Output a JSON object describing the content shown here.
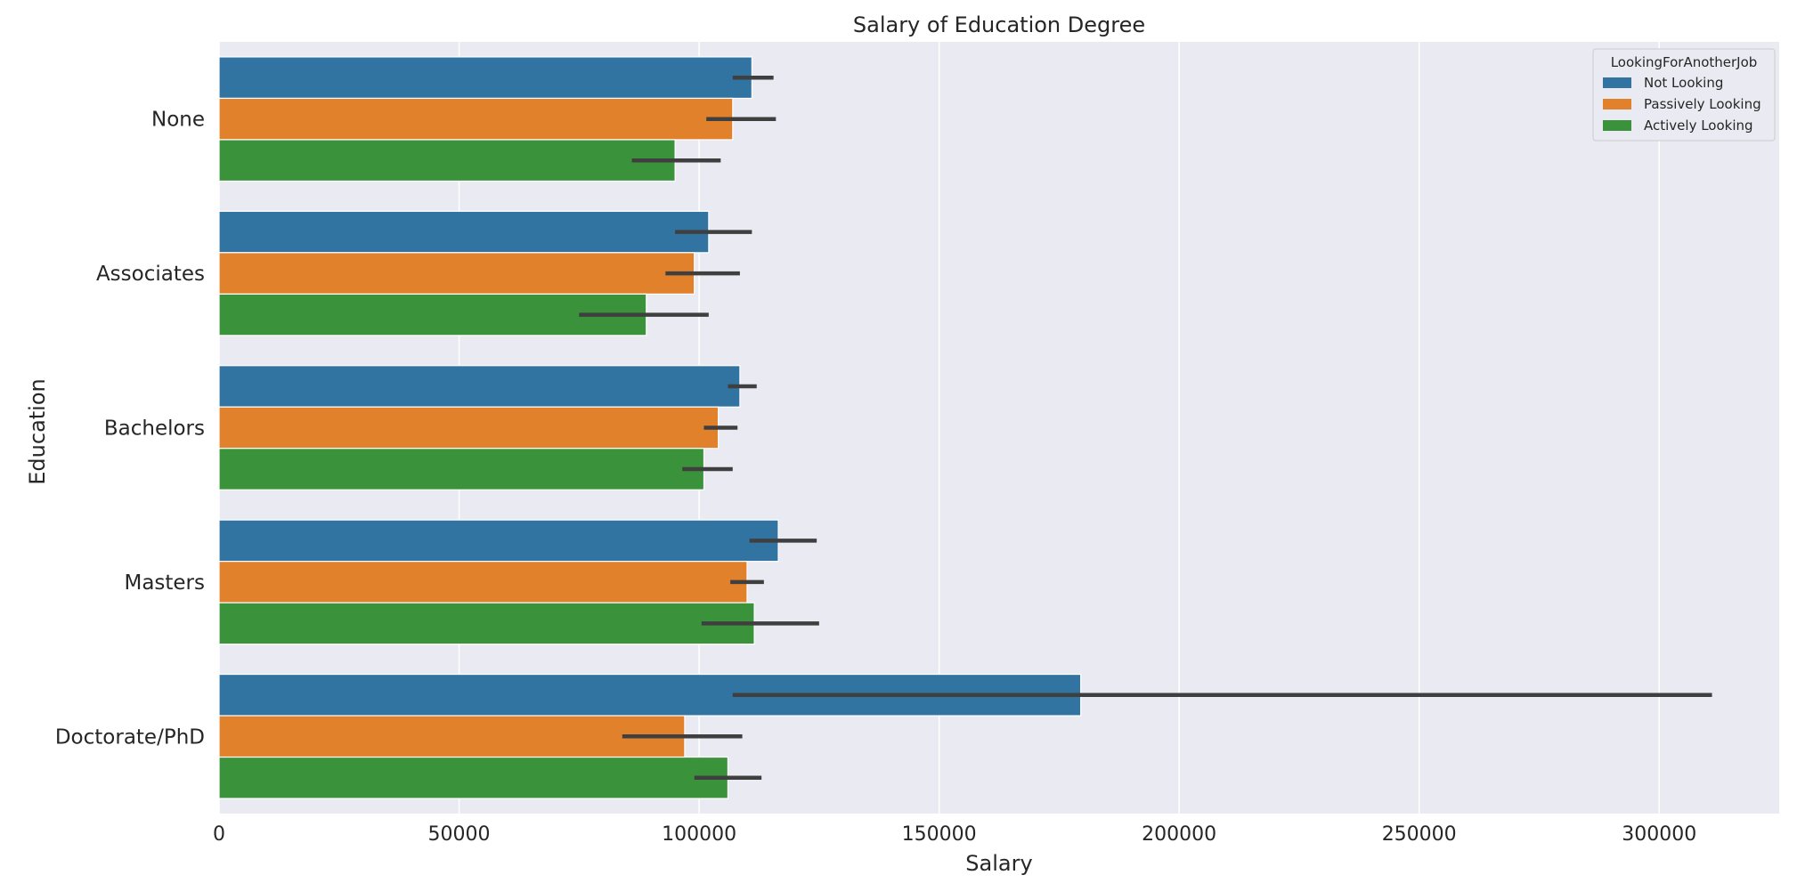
{
  "chart_data": {
    "type": "bar",
    "orientation": "horizontal",
    "title": "Salary of Education Degree",
    "xlabel": "Salary",
    "ylabel": "Education",
    "xlim": [
      0,
      325000
    ],
    "xticks": [
      0,
      50000,
      100000,
      150000,
      200000,
      250000,
      300000
    ],
    "categories": [
      "None",
      "Associates",
      "Bachelors",
      "Masters",
      "Doctorate/PhD"
    ],
    "grid": true,
    "legend": {
      "title": "LookingForAnotherJob",
      "placement": "top-right"
    },
    "series": [
      {
        "name": "Not Looking",
        "color": "#3274a1",
        "values": [
          111000,
          102000,
          108500,
          116500,
          179500
        ],
        "ci_low": [
          107000,
          95000,
          106000,
          110500,
          107000
        ],
        "ci_high": [
          115500,
          111000,
          112000,
          124500,
          311000
        ]
      },
      {
        "name": "Passively Looking",
        "color": "#e1812c",
        "values": [
          107000,
          99000,
          104000,
          110000,
          97000
        ],
        "ci_low": [
          101500,
          93000,
          101000,
          106500,
          84000
        ],
        "ci_high": [
          116000,
          108500,
          108000,
          113500,
          109000
        ]
      },
      {
        "name": "Actively Looking",
        "color": "#3a923a",
        "values": [
          95000,
          89000,
          101000,
          111500,
          106000
        ],
        "ci_low": [
          86000,
          75000,
          96500,
          100500,
          99000
        ],
        "ci_high": [
          104500,
          102000,
          107000,
          125000,
          113000
        ]
      }
    ]
  }
}
